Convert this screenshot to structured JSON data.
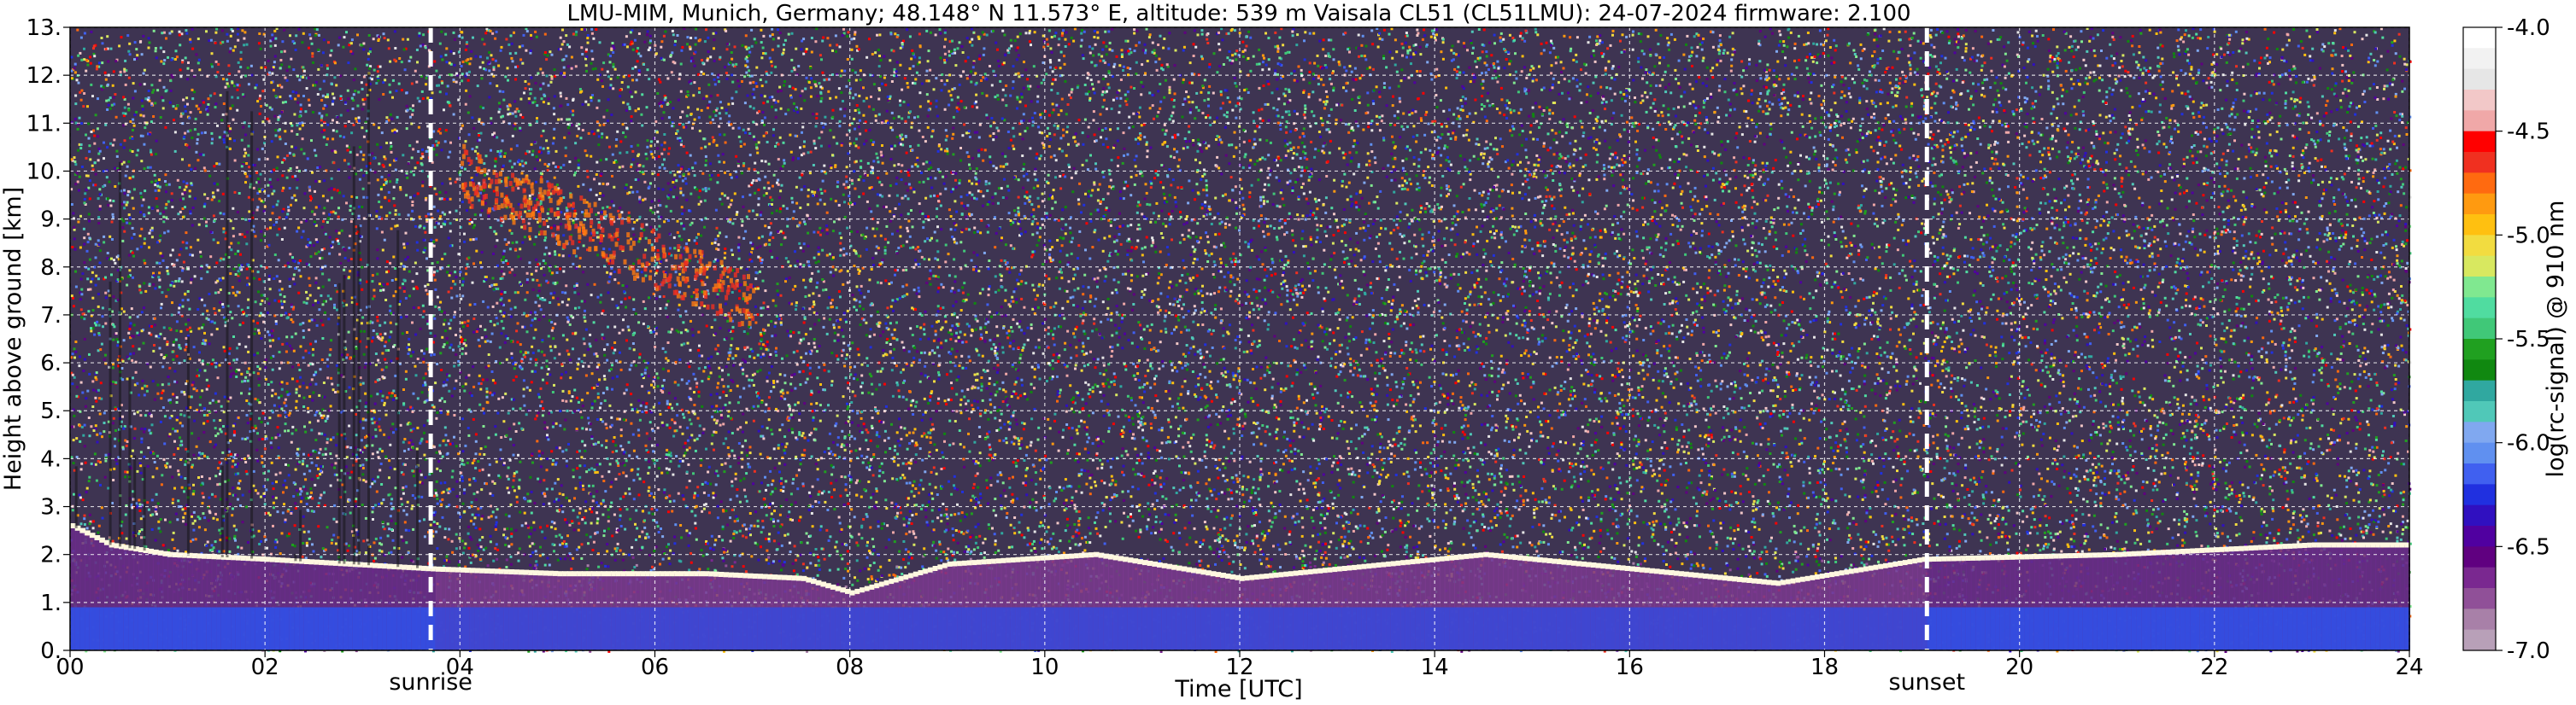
{
  "chart_data": {
    "type": "heatmap",
    "title": "LMU-MIM, Munich, Germany; 48.148° N 11.573° E, altitude: 539 m    Vaisala CL51 (CL51LMU): 24-07-2024    firmware: 2.100",
    "xlabel": "Time [UTC]",
    "ylabel": "Height above ground [km]",
    "xlim": [
      0,
      24
    ],
    "ylim": [
      0,
      13
    ],
    "x_ticks": [
      0,
      2,
      4,
      6,
      8,
      10,
      12,
      14,
      16,
      18,
      20,
      22,
      24
    ],
    "x_tick_labels": [
      "00",
      "02",
      "04",
      "06",
      "08",
      "10",
      "12",
      "14",
      "16",
      "18",
      "20",
      "22",
      "24"
    ],
    "y_ticks": [
      0,
      1,
      2,
      3,
      4,
      5,
      6,
      7,
      8,
      9,
      10,
      11,
      12,
      13
    ],
    "y_tick_labels": [
      "0.",
      "1.",
      "2.",
      "3.",
      "4.",
      "5.",
      "6.",
      "7.",
      "8.",
      "9.",
      "10.",
      "11.",
      "12.",
      "13."
    ],
    "grid": true,
    "markers": [
      {
        "label": "sunrise",
        "x": 3.7
      },
      {
        "label": "sunset",
        "x": 19.05
      }
    ],
    "colorbar": {
      "label": "log(rc-signal) @ 910 nm",
      "range": [
        -7.0,
        -4.0
      ],
      "ticks": [
        -4.0,
        -4.5,
        -5.0,
        -5.5,
        -6.0,
        -6.5,
        -7.0
      ],
      "tick_labels": [
        "-4.0",
        "-4.5",
        "-5.0",
        "-5.5",
        "-6.0",
        "-6.5",
        "-7.0"
      ],
      "colors": [
        "#ffffff",
        "#f2f2f2",
        "#e6e6e6",
        "#f2c8c8",
        "#f0a8a8",
        "#ff0000",
        "#f03020",
        "#ff6a10",
        "#ff9a10",
        "#ffc010",
        "#f2dc40",
        "#d8e860",
        "#80e890",
        "#50dca0",
        "#40c878",
        "#20a020",
        "#108810",
        "#30a8a0",
        "#50c8b8",
        "#80a8f0",
        "#6090f0",
        "#4060f0",
        "#2030e0",
        "#3010c0",
        "#5000a0",
        "#600080",
        "#7a2890",
        "#905098",
        "#a880a8",
        "#b8a0b8"
      ]
    },
    "layers": [
      {
        "description": "boundary layer top",
        "points": [
          [
            0,
            2.6
          ],
          [
            0.4,
            2.2
          ],
          [
            1.0,
            2.0
          ],
          [
            2.0,
            1.9
          ],
          [
            3.7,
            1.7
          ],
          [
            5.0,
            1.6
          ],
          [
            6.5,
            1.6
          ],
          [
            7.5,
            1.5
          ],
          [
            8.0,
            1.2
          ],
          [
            9.0,
            1.8
          ],
          [
            10.5,
            2.0
          ],
          [
            12.0,
            1.5
          ],
          [
            14.5,
            2.0
          ],
          [
            17.5,
            1.4
          ],
          [
            19.0,
            1.9
          ],
          [
            21.0,
            2.0
          ],
          [
            23.0,
            2.2
          ],
          [
            24.0,
            2.2
          ]
        ]
      },
      {
        "description": "cirrus cloud",
        "x_range": [
          4.0,
          7.0
        ],
        "y_range": [
          7.0,
          10.0
        ]
      }
    ]
  }
}
